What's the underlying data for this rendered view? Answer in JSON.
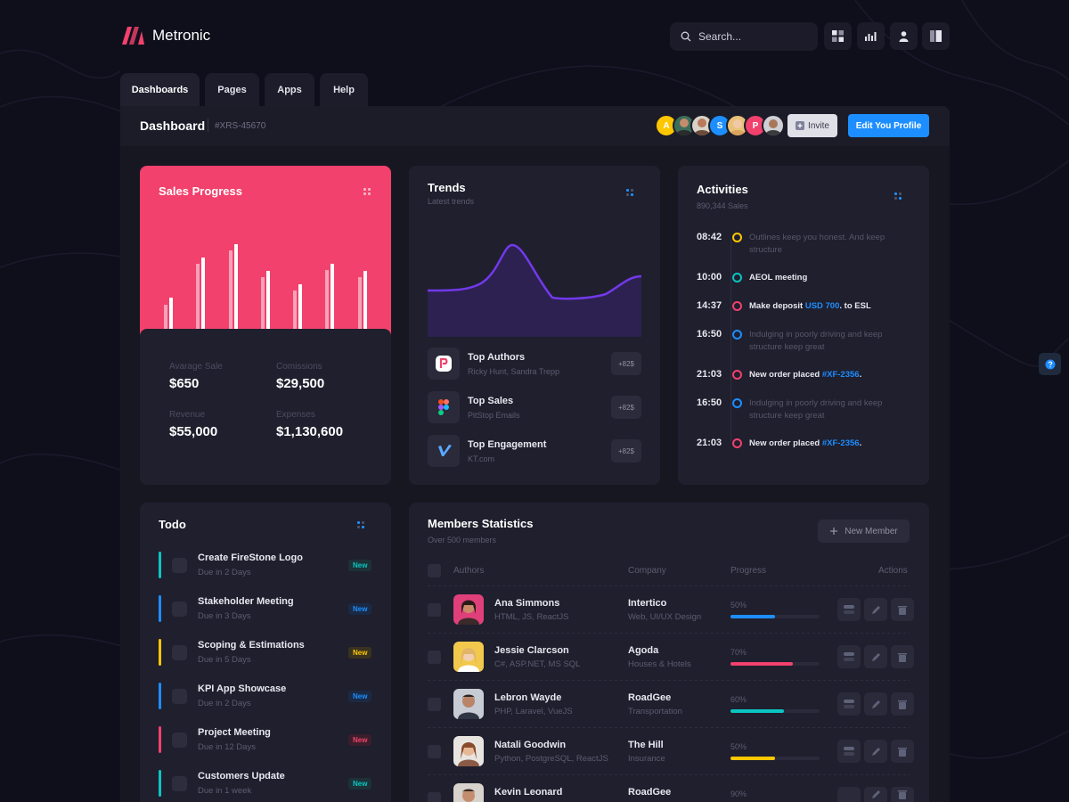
{
  "brand": {
    "name": "Metronic"
  },
  "search": {
    "placeholder": "Search..."
  },
  "topbar": {
    "icons": [
      "grid-icon",
      "bar-chart-icon",
      "user-icon",
      "layout-icon"
    ]
  },
  "nav": {
    "tabs": [
      {
        "label": "Dashboards",
        "active": true
      },
      {
        "label": "Pages"
      },
      {
        "label": "Apps"
      },
      {
        "label": "Help"
      }
    ]
  },
  "header": {
    "title": "Dashboard",
    "id": "#XRS-45670",
    "avatar_initials": [
      "A",
      "S",
      "P"
    ],
    "invite_label": "Invite",
    "edit_label": "Edit You Profile"
  },
  "sales": {
    "title": "Sales Progress",
    "stats": [
      {
        "label": "Avarage Sale",
        "value": "$650"
      },
      {
        "label": "Comissions",
        "value": "$29,500"
      },
      {
        "label": "Revenue",
        "value": "$55,000"
      },
      {
        "label": "Expenses",
        "value": "$1,130,600"
      }
    ]
  },
  "trends": {
    "title": "Trends",
    "subtitle": "Latest trends",
    "items": [
      {
        "title": "Top Authors",
        "sub": "Ricky Hunt, Sandra Trepp",
        "badge": "+82$",
        "icon": "paypal-icon"
      },
      {
        "title": "Top Sales",
        "sub": "PitStop Emails",
        "badge": "+82$",
        "icon": "figma-icon"
      },
      {
        "title": "Top Engagement",
        "sub": "KT.com",
        "badge": "+82$",
        "icon": "vimeo-icon"
      }
    ]
  },
  "activities": {
    "title": "Activities",
    "subtitle": "890,344 Sales",
    "items": [
      {
        "time": "08:42",
        "text": "Outlines keep you honest. And keep structure",
        "color": "#ffc700",
        "strong": false
      },
      {
        "time": "10:00",
        "text": "AEOL meeting",
        "color": "#0bc5c1",
        "strong": true
      },
      {
        "time": "14:37",
        "pre": "Make deposit ",
        "link": "USD 700",
        "post": ". to ESL",
        "color": "#f1416c",
        "strong": true
      },
      {
        "time": "16:50",
        "text": "Indulging in poorly driving and keep structure keep great",
        "color": "#1d8eff",
        "strong": false
      },
      {
        "time": "21:03",
        "pre": "New order placed ",
        "link": "#XF-2356",
        "post": ".",
        "color": "#f1416c",
        "strong": true
      },
      {
        "time": "16:50",
        "text": "Indulging in poorly driving and keep structure keep great",
        "color": "#1d8eff",
        "strong": false
      },
      {
        "time": "21:03",
        "pre": "New order placed ",
        "link": "#XF-2356",
        "post": ".",
        "color": "#f1416c",
        "strong": true
      }
    ]
  },
  "todo": {
    "title": "Todo",
    "items": [
      {
        "title": "Create FireStone Logo",
        "due": "Due in 2 Days",
        "badge": "New",
        "color": "#0bc5c1"
      },
      {
        "title": "Stakeholder Meeting",
        "due": "Due in 3 Days",
        "badge": "New",
        "color": "#1d8eff"
      },
      {
        "title": "Scoping & Estimations",
        "due": "Due in 5 Days",
        "badge": "New",
        "color": "#ffc700"
      },
      {
        "title": "KPI App Showcase",
        "due": "Due in 2 Days",
        "badge": "New",
        "color": "#1d8eff"
      },
      {
        "title": "Project Meeting",
        "due": "Due in 12 Days",
        "badge": "New",
        "color": "#f1416c"
      },
      {
        "title": "Customers Update",
        "due": "Due in 1 week",
        "badge": "New",
        "color": "#0bc5c1"
      }
    ]
  },
  "members": {
    "title": "Members Statistics",
    "subtitle": "Over 500 members",
    "new_member_label": "New Member",
    "columns": [
      "Authors",
      "Company",
      "Progress",
      "Actions"
    ],
    "rows": [
      {
        "name": "Ana Simmons",
        "skills": "HTML, JS, ReactJS",
        "company": "Intertico",
        "company_sub": "Web, UI/UX Design",
        "progress": "50%",
        "progress_value": 50,
        "color": "#1d8eff"
      },
      {
        "name": "Jessie Clarcson",
        "skills": "C#, ASP.NET, MS SQL",
        "company": "Agoda",
        "company_sub": "Houses & Hotels",
        "progress": "70%",
        "progress_value": 70,
        "color": "#f1416c"
      },
      {
        "name": "Lebron Wayde",
        "skills": "PHP, Laravel, VueJS",
        "company": "RoadGee",
        "company_sub": "Transportation",
        "progress": "60%",
        "progress_value": 60,
        "color": "#0bc5c1"
      },
      {
        "name": "Natali Goodwin",
        "skills": "Python, PostgreSQL, ReactJS",
        "company": "The Hill",
        "company_sub": "Insurance",
        "progress": "50%",
        "progress_value": 50,
        "color": "#ffc700"
      },
      {
        "name": "Kevin Leonard",
        "skills": "",
        "company": "RoadGee",
        "company_sub": "",
        "progress": "90%",
        "progress_value": 90,
        "color": "#1d8eff"
      }
    ]
  },
  "colors": {
    "accent": "#1d8eff",
    "danger": "#f1416c",
    "success": "#0bc5c1",
    "warning": "#ffc700",
    "purple": "#7239ea"
  }
}
